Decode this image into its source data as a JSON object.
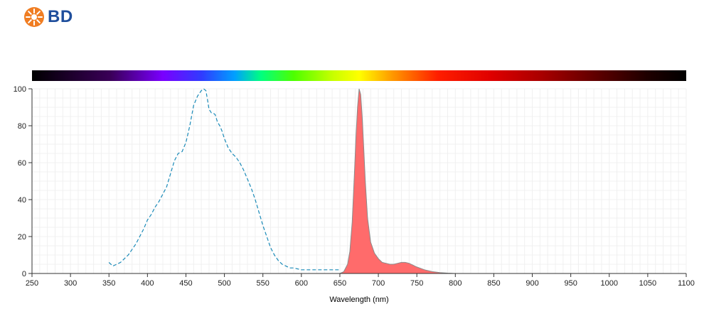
{
  "brand": {
    "logo_text": "BD",
    "logo_color": "#1f4e9c",
    "logo_mark_color": "#f07d22"
  },
  "chart_data": {
    "type": "area",
    "xlabel": "Wavelength (nm)",
    "ylabel": "",
    "xlim": [
      250,
      1100
    ],
    "ylim": [
      0,
      100
    ],
    "x_ticks": [
      250,
      300,
      350,
      400,
      450,
      500,
      550,
      600,
      650,
      700,
      750,
      800,
      850,
      900,
      950,
      1000,
      1050,
      1100
    ],
    "y_ticks": [
      0,
      20,
      40,
      60,
      80,
      100
    ],
    "grid": true,
    "spectrum_bar": true,
    "series": [
      {
        "style": "dashed-line",
        "color": "#1a8ab8",
        "x": [
          350,
          355,
          360,
          365,
          370,
          375,
          380,
          385,
          390,
          395,
          400,
          405,
          410,
          415,
          420,
          425,
          430,
          435,
          440,
          445,
          450,
          455,
          460,
          465,
          470,
          473,
          476,
          478,
          480,
          483,
          485,
          488,
          491,
          494,
          497,
          500,
          505,
          510,
          515,
          520,
          525,
          530,
          535,
          540,
          545,
          550,
          555,
          560,
          565,
          570,
          575,
          580,
          585,
          590,
          600,
          610,
          620,
          630,
          640,
          650
        ],
        "y": [
          6,
          4,
          5,
          6,
          8,
          10,
          13,
          16,
          20,
          24,
          29,
          32,
          36,
          39,
          43,
          47,
          54,
          61,
          65,
          66,
          71,
          80,
          91,
          96,
          99,
          100,
          99,
          94,
          89,
          87,
          87,
          86,
          82,
          80,
          77,
          73,
          68,
          65,
          63,
          60,
          56,
          51,
          46,
          40,
          33,
          26,
          20,
          14,
          10,
          7,
          5,
          4,
          3,
          3,
          2,
          2,
          2,
          2,
          2,
          2
        ]
      },
      {
        "style": "filled-area",
        "color": "#ff6b6b",
        "x": [
          650,
          655,
          660,
          663,
          666,
          669,
          671,
          673,
          675,
          677,
          679,
          681,
          683,
          686,
          690,
          695,
          700,
          705,
          710,
          715,
          720,
          725,
          730,
          735,
          740,
          745,
          750,
          760,
          770,
          780,
          790,
          800
        ],
        "y": [
          0,
          1,
          5,
          12,
          28,
          55,
          75,
          90,
          100,
          97,
          85,
          68,
          50,
          30,
          17,
          11,
          8,
          6,
          5.5,
          5,
          5,
          5.5,
          6,
          6,
          5.5,
          4.5,
          3.5,
          2,
          1,
          0.5,
          0.2,
          0
        ]
      }
    ]
  }
}
